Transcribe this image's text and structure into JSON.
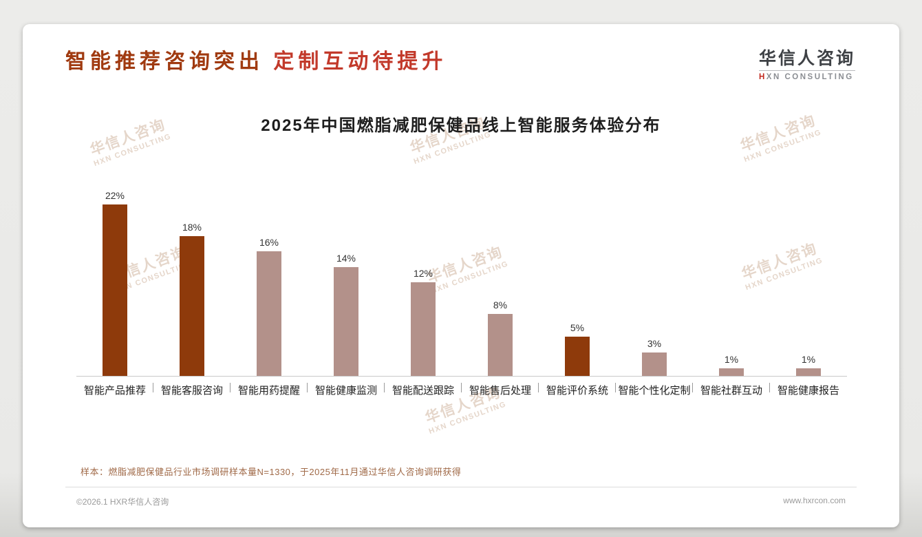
{
  "page": {
    "background": "#e9e9e7",
    "card_background": "#ffffff"
  },
  "header": {
    "title_part1": "智能推荐咨询突出",
    "title_part2": "定制互动待提升",
    "title_color1": "#a03a10",
    "title_color2": "#c2392a",
    "logo": {
      "cn": "华信人咨询",
      "en_first": "H",
      "en_rest": "XN CONSULTING",
      "accent_color": "#c0281e"
    }
  },
  "chart_data": {
    "type": "bar",
    "title": "2025年中国燃脂减肥保健品线上智能服务体验分布",
    "categories": [
      "智能产品推荐",
      "智能客服咨询",
      "智能用药提醒",
      "智能健康监测",
      "智能配送跟踪",
      "智能售后处理",
      "智能评价系统",
      "智能个性化定制",
      "智能社群互动",
      "智能健康报告"
    ],
    "values": [
      22,
      18,
      16,
      14,
      12,
      8,
      5,
      3,
      1,
      1
    ],
    "value_suffix": "%",
    "bar_colors": [
      "#8e3a0b",
      "#8e3a0b",
      "#b3918a",
      "#b3918a",
      "#b3918a",
      "#b3918a",
      "#8e3a0b",
      "#b3918a",
      "#b3918a",
      "#b3918a"
    ],
    "highlight_color": "#8e3a0b",
    "base_color": "#b3918a",
    "xlabel": "",
    "ylabel": "",
    "ylim": [
      0,
      24
    ],
    "grid": false,
    "legend": false,
    "value_labels": true
  },
  "footnote": "样本：燃脂减肥保健品行业市场调研样本量N=1330，于2025年11月通过华信人咨询调研获得",
  "footer": {
    "left": "©2026.1 HXR华信人咨询",
    "right": "www.hxrcon.com"
  },
  "watermark": {
    "line1": "华信人咨询",
    "line2": "HXN CONSULTING"
  }
}
